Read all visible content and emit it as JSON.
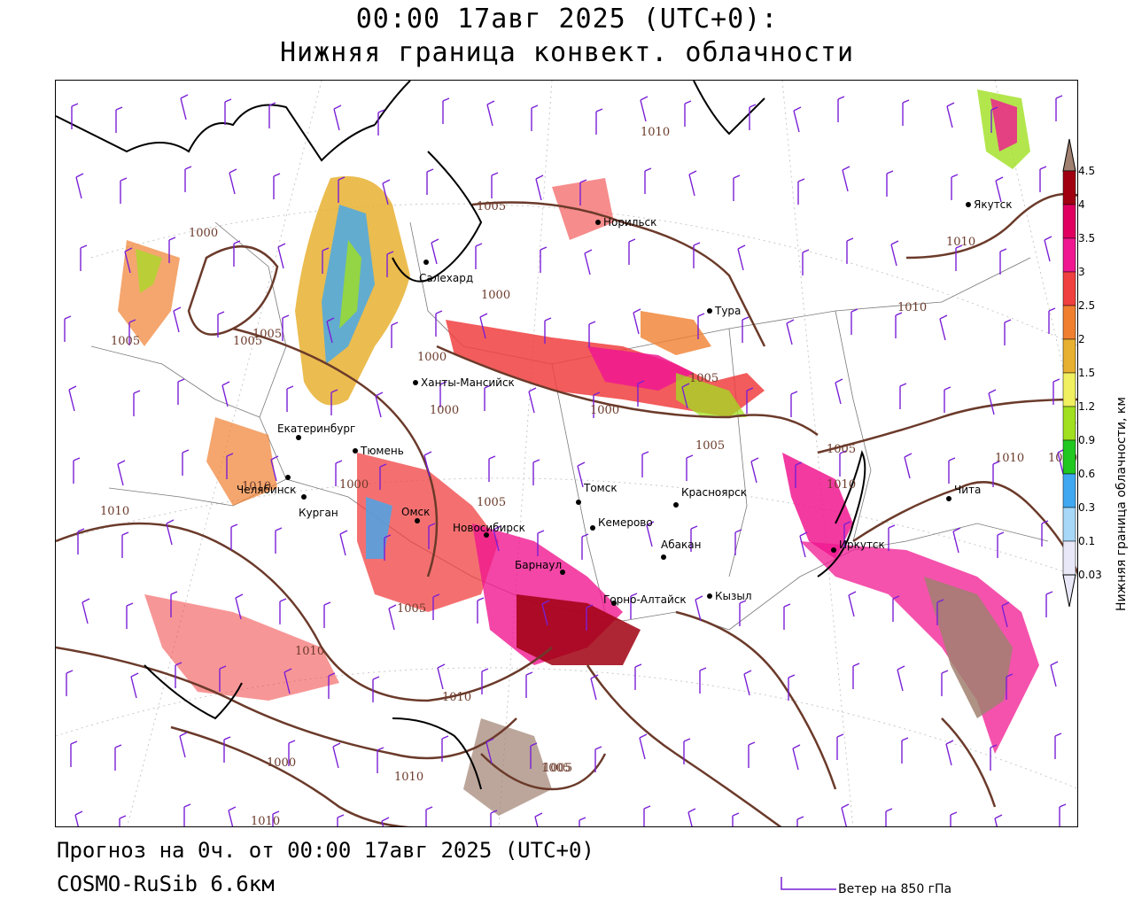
{
  "header": {
    "title_line1": "00:00 17авг 2025 (UTC+0):",
    "title_line2": "Нижняя граница конвект. облачности"
  },
  "footer": {
    "forecast_line": "Прогноз на 0ч. от 00:00 17авг 2025 (UTC+0)",
    "model_line": "COSMO-RuSib 6.6км"
  },
  "wind_legend": {
    "label": "Ветер на 850 гПа",
    "color": "#7a1fd6"
  },
  "colorbar": {
    "title": "Нижняя граница облачности, км",
    "ticks": [
      "0.03",
      "0.1",
      "0.3",
      "0.6",
      "0.9",
      "1.2",
      "1.5",
      "2",
      "2.5",
      "3",
      "3.5",
      "4",
      "4.5"
    ],
    "colors": [
      "#e8e8f8",
      "#a8d8f8",
      "#40a8f0",
      "#20c820",
      "#a0e020",
      "#f0f060",
      "#e8b030",
      "#f08030",
      "#f04040",
      "#f01890",
      "#e00060",
      "#a00010",
      "#a08070"
    ]
  },
  "isobar": {
    "color": "#6b3a2a",
    "labels": [
      "1010",
      "1005",
      "1000",
      "1010",
      "1010",
      "1005",
      "1000",
      "1005",
      "1005",
      "1000",
      "1000",
      "1000",
      "1005",
      "1005",
      "1010",
      "1005",
      "1010",
      "1010",
      "1010",
      "1010",
      "1000",
      "1005",
      "1005",
      "1010",
      "1010",
      "1005",
      "1010",
      "1000",
      "1010",
      "1005"
    ]
  },
  "cities": [
    {
      "name": "Норильск"
    },
    {
      "name": "Якутск"
    },
    {
      "name": "Салехард"
    },
    {
      "name": "Тура"
    },
    {
      "name": "Ханты-Мансийск"
    },
    {
      "name": "Екатеринбург"
    },
    {
      "name": "Тюмень"
    },
    {
      "name": "Челябинск"
    },
    {
      "name": "Курган"
    },
    {
      "name": "Томск"
    },
    {
      "name": "Красноярск"
    },
    {
      "name": "Омск"
    },
    {
      "name": "Новосибирск"
    },
    {
      "name": "Кемерово"
    },
    {
      "name": "Барнаул"
    },
    {
      "name": "Абакан"
    },
    {
      "name": "Иркутск"
    },
    {
      "name": "Чита"
    },
    {
      "name": "Горно-Алтайск"
    },
    {
      "name": "Кызыл"
    }
  ]
}
